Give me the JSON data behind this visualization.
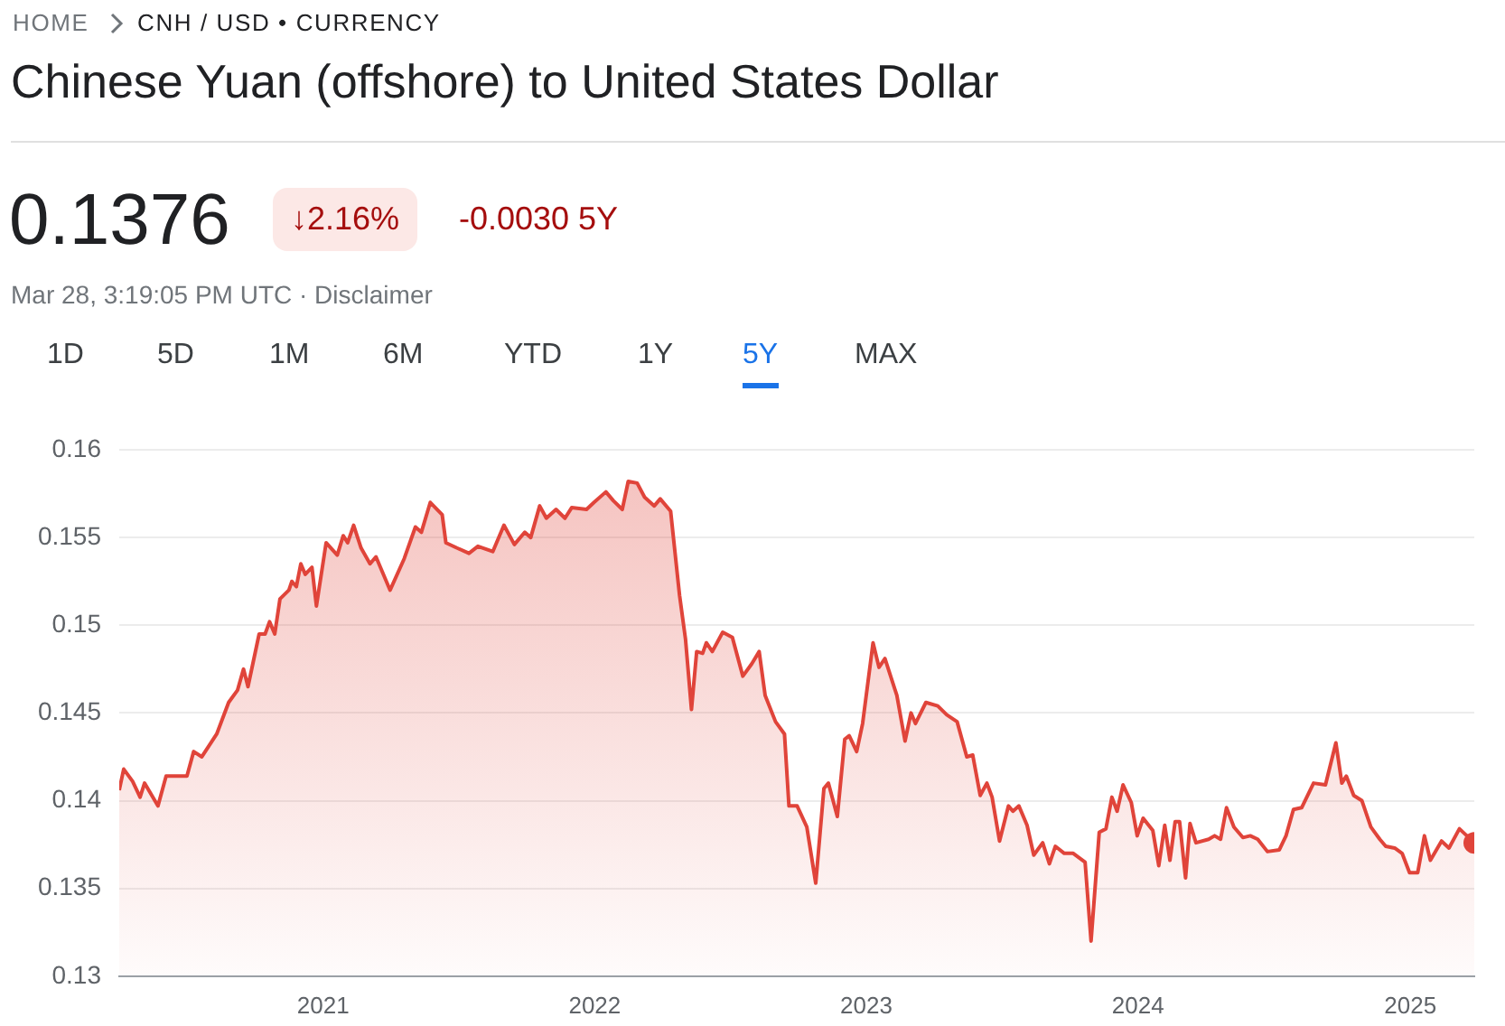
{
  "chart_data": {
    "type": "area",
    "title": "Chinese Yuan (offshore) to United States Dollar",
    "annotations": [
      "HOME",
      "CNH / USD • CURRENCY",
      "0.1376",
      "↓2.16%",
      "-0.0030 5Y",
      "Mar 28, 3:19:05 PM UTC · Disclaimer",
      "1D",
      "5D",
      "1M",
      "6M",
      "YTD",
      "1Y",
      "5Y",
      "MAX"
    ],
    "x": [
      "2020-04-02",
      "2020-04-08",
      "2020-04-20",
      "2020-04-30",
      "2020-05-06",
      "2020-05-24",
      "2020-06-04",
      "2020-07-02",
      "2020-07-11",
      "2020-07-22",
      "2020-08-11",
      "2020-08-27",
      "2020-09-08",
      "2020-09-16",
      "2020-09-22",
      "2020-10-07",
      "2020-10-15",
      "2020-10-21",
      "2020-10-28",
      "2020-11-04",
      "2020-11-16",
      "2020-11-20",
      "2020-11-26",
      "2020-12-02",
      "2020-12-08",
      "2020-12-17",
      "2020-12-23",
      "2021-01-05",
      "2021-01-20",
      "2021-01-28",
      "2021-02-03",
      "2021-02-11",
      "2021-02-21",
      "2021-03-05",
      "2021-03-13",
      "2021-04-01",
      "2021-04-20",
      "2021-05-05",
      "2021-05-13",
      "2021-05-25",
      "2021-06-10",
      "2021-06-15",
      "2021-06-30",
      "2021-07-16",
      "2021-07-28",
      "2021-08-17",
      "2021-09-01",
      "2021-09-15",
      "2021-09-29",
      "2021-10-07",
      "2021-10-19",
      "2021-10-28",
      "2021-11-10",
      "2021-11-22",
      "2021-12-01",
      "2021-12-21",
      "2021-12-31",
      "2022-01-16",
      "2022-01-26",
      "2022-02-07",
      "2022-02-15",
      "2022-02-27",
      "2022-03-09",
      "2022-03-22",
      "2022-03-30",
      "2022-04-13",
      "2022-04-25",
      "2022-05-03",
      "2022-05-11",
      "2022-05-18",
      "2022-05-26",
      "2022-05-31",
      "2022-06-08",
      "2022-06-22",
      "2022-07-05",
      "2022-07-19",
      "2022-07-31",
      "2022-08-10",
      "2022-08-18",
      "2022-09-01",
      "2022-09-13",
      "2022-09-19",
      "2022-09-30",
      "2022-10-13",
      "2022-10-25",
      "2022-11-05",
      "2022-11-11",
      "2022-11-23",
      "2022-12-03",
      "2022-12-09",
      "2022-12-19",
      "2022-12-27",
      "2023-01-10",
      "2023-01-18",
      "2023-01-26",
      "2023-02-11",
      "2023-02-22",
      "2023-03-02",
      "2023-03-08",
      "2023-03-22",
      "2023-04-07",
      "2023-04-19",
      "2023-05-03",
      "2023-05-16",
      "2023-05-24",
      "2023-06-03",
      "2023-06-12",
      "2023-06-19",
      "2023-06-29",
      "2023-07-11",
      "2023-07-17",
      "2023-07-25",
      "2023-08-05",
      "2023-08-14",
      "2023-08-26",
      "2023-09-04",
      "2023-09-12",
      "2023-09-24",
      "2023-10-06",
      "2023-10-22",
      "2023-10-30",
      "2023-11-10",
      "2023-11-19",
      "2023-11-27",
      "2023-12-04",
      "2023-12-12",
      "2023-12-23",
      "2023-12-31",
      "2024-01-08",
      "2024-01-21",
      "2024-01-29",
      "2024-02-06",
      "2024-02-13",
      "2024-02-20",
      "2024-02-26",
      "2024-03-05",
      "2024-03-11",
      "2024-03-19",
      "2024-04-05",
      "2024-04-13",
      "2024-04-21",
      "2024-04-29",
      "2024-05-09",
      "2024-05-21",
      "2024-05-31",
      "2024-06-10",
      "2024-06-23",
      "2024-07-09",
      "2024-07-18",
      "2024-07-28",
      "2024-08-08",
      "2024-08-24",
      "2024-09-09",
      "2024-09-23",
      "2024-10-01",
      "2024-10-07",
      "2024-10-17",
      "2024-10-28",
      "2024-11-09",
      "2024-11-21",
      "2024-11-29",
      "2024-12-11",
      "2024-12-21",
      "2024-12-31",
      "2025-01-11",
      "2025-01-20",
      "2025-01-28",
      "2025-02-12",
      "2025-02-22",
      "2025-03-08",
      "2025-03-28"
    ],
    "series": [
      {
        "color": "#e0443a",
        "values": [
          0.1406,
          0.1418,
          0.1411,
          0.1402,
          0.141,
          0.1397,
          0.1414,
          0.1414,
          0.1428,
          0.1425,
          0.1438,
          0.1456,
          0.1463,
          0.1475,
          0.1465,
          0.1495,
          0.1495,
          0.1502,
          0.1495,
          0.1515,
          0.152,
          0.1525,
          0.1522,
          0.1535,
          0.1529,
          0.1533,
          0.1511,
          0.1547,
          0.154,
          0.1551,
          0.1547,
          0.1557,
          0.1544,
          0.1535,
          0.1539,
          0.152,
          0.1538,
          0.1556,
          0.1553,
          0.157,
          0.1563,
          0.1547,
          0.1544,
          0.1541,
          0.1545,
          0.1542,
          0.1557,
          0.1546,
          0.1553,
          0.155,
          0.1568,
          0.1561,
          0.1566,
          0.1561,
          0.1567,
          0.1566,
          0.157,
          0.1576,
          0.1571,
          0.1566,
          0.1582,
          0.1581,
          0.1573,
          0.1568,
          0.1572,
          0.1565,
          0.1517,
          0.1492,
          0.1452,
          0.1485,
          0.1484,
          0.149,
          0.1485,
          0.1496,
          0.1493,
          0.1471,
          0.1478,
          0.1485,
          0.146,
          0.1445,
          0.1438,
          0.1397,
          0.1397,
          0.1385,
          0.1353,
          0.1407,
          0.141,
          0.1391,
          0.1435,
          0.1437,
          0.1428,
          0.1444,
          0.149,
          0.1476,
          0.1481,
          0.146,
          0.1434,
          0.145,
          0.1444,
          0.1456,
          0.1454,
          0.1449,
          0.1445,
          0.1425,
          0.1426,
          0.1403,
          0.141,
          0.1402,
          0.1377,
          0.1397,
          0.1394,
          0.1397,
          0.1386,
          0.1369,
          0.1376,
          0.1364,
          0.1374,
          0.137,
          0.137,
          0.1365,
          0.132,
          0.1382,
          0.1384,
          0.1402,
          0.1394,
          0.1409,
          0.1399,
          0.138,
          0.139,
          0.1383,
          0.1363,
          0.1386,
          0.1366,
          0.1388,
          0.1388,
          0.1356,
          0.1387,
          0.1376,
          0.1378,
          0.138,
          0.1378,
          0.1396,
          0.1385,
          0.1379,
          0.138,
          0.1378,
          0.1371,
          0.1372,
          0.138,
          0.1395,
          0.1396,
          0.141,
          0.1409,
          0.1433,
          0.141,
          0.1414,
          0.1403,
          0.14,
          0.1385,
          0.1378,
          0.1374,
          0.1373,
          0.137,
          0.1359,
          0.1359,
          0.138,
          0.1366,
          0.1377,
          0.1373,
          0.1384,
          0.1376
        ]
      }
    ],
    "xlim": [
      "2020-04-02",
      "2025-03-28"
    ],
    "xticks": [
      "2021",
      "2022",
      "2023",
      "2024",
      "2025"
    ],
    "ylim": [
      0.13,
      0.16
    ],
    "yticks": [
      0.13,
      0.135,
      0.14,
      0.145,
      0.15,
      0.155,
      0.16
    ],
    "grid": "y",
    "legend": false
  }
}
